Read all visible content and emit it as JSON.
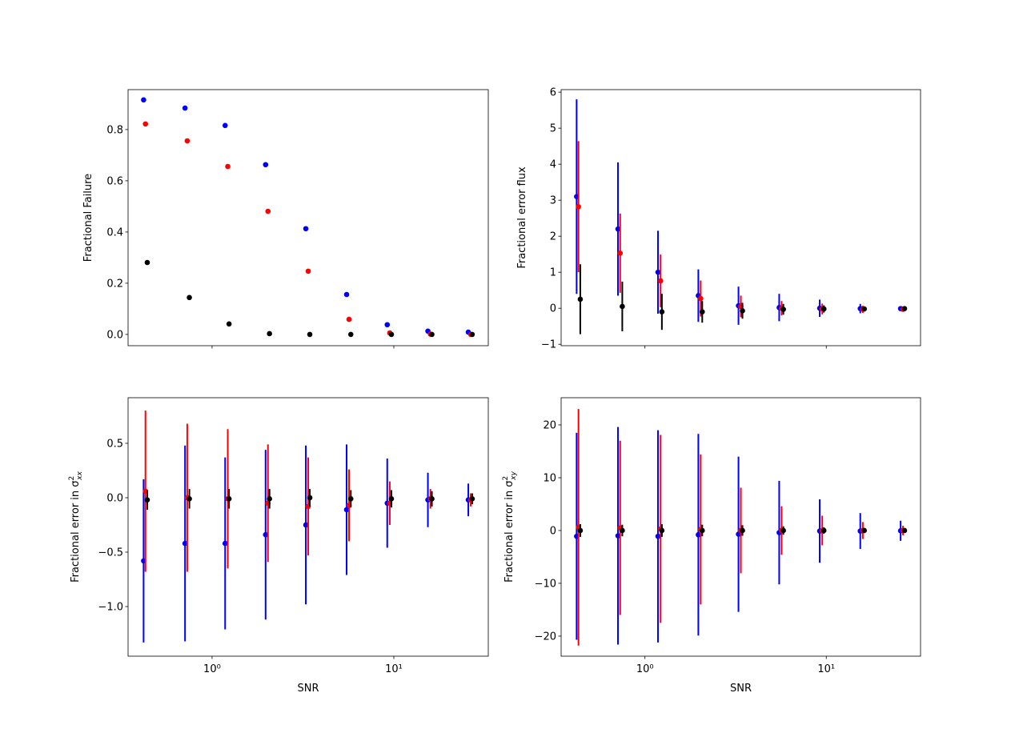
{
  "chart_data": [
    {
      "type": "scatter",
      "ylabel": "Fractional Failure",
      "xscale": "log",
      "xlim": [
        0.345,
        33.1
      ],
      "xticks": [
        1,
        10
      ],
      "ylim": [
        -0.044,
        0.956
      ],
      "yticks": [
        {
          "value": 0,
          "label": "0.0"
        },
        {
          "value": 0.2,
          "label": "0.2"
        },
        {
          "value": 0.4,
          "label": "0.4"
        },
        {
          "value": 0.6,
          "label": "0.6"
        },
        {
          "value": 0.8,
          "label": "0.8"
        }
      ],
      "series": [
        {
          "color": "#0000ff",
          "x": [
            0.42,
            0.71,
            1.18,
            1.97,
            3.28,
            5.5,
            9.2,
            15.4,
            25.7
          ],
          "values": [
            0.916,
            0.884,
            0.816,
            0.663,
            0.413,
            0.156,
            0.038,
            0.013,
            0.009
          ]
        },
        {
          "color": "#ff0000",
          "x": [
            0.43,
            0.73,
            1.22,
            2.03,
            3.38,
            5.67,
            9.5,
            15.9,
            26.5
          ],
          "values": [
            0.822,
            0.756,
            0.656,
            0.481,
            0.247,
            0.059,
            0.006,
            0.001,
            0.0
          ]
        },
        {
          "color": "#000000",
          "x": [
            0.44,
            0.75,
            1.24,
            2.07,
            3.45,
            5.8,
            9.7,
            16.2,
            27.0
          ],
          "values": [
            0.281,
            0.144,
            0.041,
            0.003,
            0.0,
            0.0,
            0.0,
            0.0,
            0.0
          ]
        }
      ]
    },
    {
      "type": "errorbar",
      "ylabel": "Fractional error flux",
      "xscale": "log",
      "xlim": [
        0.345,
        33.1
      ],
      "xticks": [
        1,
        10
      ],
      "ylim": [
        -1.04,
        6.07
      ],
      "yticks": [
        {
          "value": -1,
          "label": "−1"
        },
        0,
        1,
        2,
        3,
        4,
        5,
        6
      ],
      "series": [
        {
          "color": "#0000ff",
          "x": [
            0.42,
            0.71,
            1.18,
            1.97,
            3.28,
            5.5,
            9.2,
            15.4,
            25.7
          ],
          "values": [
            3.1,
            2.2,
            1.0,
            0.35,
            0.07,
            0.02,
            0.0,
            -0.01,
            -0.01
          ],
          "errors": [
            2.7,
            1.85,
            1.15,
            0.73,
            0.53,
            0.38,
            0.24,
            0.13,
            0.05
          ]
        },
        {
          "color": "#ff0000",
          "x": [
            0.43,
            0.73,
            1.22,
            2.03,
            3.38,
            5.67,
            9.5,
            15.9,
            26.5
          ],
          "values": [
            2.82,
            1.53,
            0.76,
            0.27,
            0.05,
            0.0,
            -0.02,
            -0.03,
            -0.03
          ],
          "errors": [
            1.82,
            1.1,
            0.73,
            0.5,
            0.3,
            0.2,
            0.15,
            0.1,
            0.05
          ]
        },
        {
          "color": "#000000",
          "x": [
            0.44,
            0.75,
            1.24,
            2.07,
            3.45,
            5.8,
            9.7,
            16.2,
            27.0
          ],
          "values": [
            0.25,
            0.05,
            -0.1,
            -0.1,
            -0.07,
            -0.03,
            -0.02,
            -0.02,
            -0.01
          ],
          "errors": [
            0.97,
            0.69,
            0.5,
            0.3,
            0.22,
            0.15,
            0.1,
            0.07,
            0.04
          ]
        }
      ]
    },
    {
      "type": "errorbar",
      "ylabel": {
        "text": "Fractional error in σ",
        "sup": "2",
        "sub": "xx"
      },
      "xlabel": "SNR",
      "xscale": "log",
      "xlim": [
        0.345,
        33.1
      ],
      "xticks": [
        {
          "value": 1,
          "label": "10⁰"
        },
        {
          "value": 10,
          "label": "10¹"
        }
      ],
      "ylim": [
        -1.456,
        0.919
      ],
      "yticks": [
        {
          "value": -1,
          "label": "−1.0"
        },
        {
          "value": -0.5,
          "label": "−0.5"
        },
        {
          "value": 0,
          "label": "0.0"
        },
        {
          "value": 0.5,
          "label": "0.5"
        }
      ],
      "series": [
        {
          "color": "#0000ff",
          "x": [
            0.42,
            0.71,
            1.18,
            1.97,
            3.28,
            5.5,
            9.2,
            15.4,
            25.7
          ],
          "values": [
            -0.58,
            -0.42,
            -0.42,
            -0.34,
            -0.25,
            -0.11,
            -0.05,
            -0.02,
            -0.02
          ],
          "errors": [
            0.75,
            0.9,
            0.79,
            0.78,
            0.73,
            0.6,
            0.41,
            0.25,
            0.15
          ]
        },
        {
          "color": "#ff0000",
          "x": [
            0.43,
            0.73,
            1.22,
            2.03,
            3.38,
            5.67,
            9.5,
            15.9,
            26.5
          ],
          "values": [
            0.06,
            0.0,
            -0.01,
            -0.05,
            -0.08,
            -0.07,
            -0.05,
            -0.01,
            -0.02
          ],
          "errors": [
            0.74,
            0.68,
            0.64,
            0.54,
            0.45,
            0.33,
            0.2,
            0.09,
            0.06
          ]
        },
        {
          "color": "#000000",
          "x": [
            0.44,
            0.75,
            1.24,
            2.07,
            3.45,
            5.8,
            9.7,
            16.2,
            27.0
          ],
          "values": [
            -0.02,
            -0.01,
            -0.01,
            -0.01,
            0.0,
            -0.01,
            -0.01,
            -0.01,
            -0.01
          ],
          "errors": [
            0.09,
            0.09,
            0.09,
            0.09,
            0.08,
            0.08,
            0.08,
            0.07,
            0.05
          ]
        }
      ]
    },
    {
      "type": "errorbar",
      "ylabel": {
        "text": "Fractional error in σ",
        "sup": "2",
        "sub": "xy"
      },
      "xlabel": "SNR",
      "xscale": "log",
      "xlim": [
        0.345,
        33.1
      ],
      "xticks": [
        {
          "value": 1,
          "label": "10⁰"
        },
        {
          "value": 10,
          "label": "10¹"
        }
      ],
      "ylim": [
        -23.8,
        25.15
      ],
      "yticks": [
        {
          "value": -20,
          "label": "−20"
        },
        {
          "value": -10,
          "label": "−10"
        },
        0,
        10,
        20
      ],
      "series": [
        {
          "color": "#0000ff",
          "x": [
            0.42,
            0.71,
            1.18,
            1.97,
            3.28,
            5.5,
            9.2,
            15.4,
            25.7
          ],
          "values": [
            -1.1,
            -1.0,
            -1.1,
            -0.8,
            -0.7,
            -0.4,
            -0.1,
            -0.1,
            -0.05
          ],
          "errors": [
            19.6,
            20.6,
            20.1,
            19.1,
            14.7,
            9.8,
            6.0,
            3.4,
            1.9
          ]
        },
        {
          "color": "#ff0000",
          "x": [
            0.43,
            0.73,
            1.22,
            2.03,
            3.38,
            5.67,
            9.5,
            15.9,
            26.5
          ],
          "values": [
            0.6,
            0.5,
            0.3,
            0.2,
            0.0,
            0.0,
            0.0,
            0.0,
            0.0
          ],
          "errors": [
            22.4,
            16.5,
            17.8,
            14.2,
            8.1,
            4.6,
            2.8,
            1.6,
            0.9
          ]
        },
        {
          "color": "#000000",
          "x": [
            0.44,
            0.75,
            1.24,
            2.07,
            3.45,
            5.8,
            9.7,
            16.2,
            27.0
          ],
          "values": [
            0,
            0,
            0,
            0,
            0,
            0,
            0,
            0,
            0
          ],
          "errors": [
            1.2,
            1.1,
            1.2,
            1.1,
            1.0,
            0.8,
            0.6,
            0.5,
            0.4
          ]
        }
      ]
    }
  ]
}
